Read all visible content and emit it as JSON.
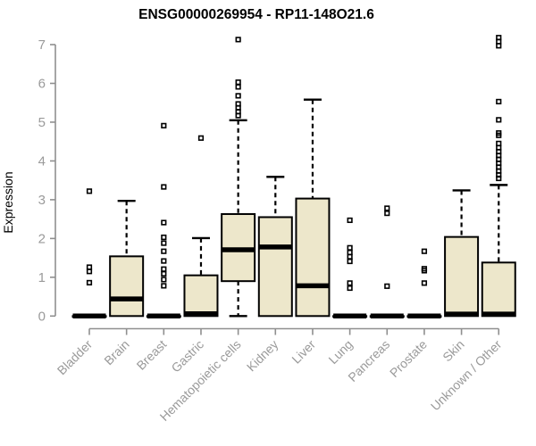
{
  "chart_data": {
    "type": "box",
    "title": "ENSG00000269954 - RP11-148O21.6",
    "ylabel": "Expression",
    "xlabel": "",
    "ylim": [
      0,
      7
    ],
    "yticks": [
      0,
      1,
      2,
      3,
      4,
      5,
      6,
      7
    ],
    "grid": false,
    "legend": "none",
    "categories": [
      "Bladder",
      "Brain",
      "Breast",
      "Gastric",
      "Hematopoietic cells",
      "Kidney",
      "Liver",
      "Lung",
      "Pancreas",
      "Prostate",
      "Skin",
      "Unknown / Other"
    ],
    "boxes": [
      {
        "category": "Bladder",
        "q1": 0,
        "median": 0,
        "q3": 0,
        "whisker_low": 0,
        "whisker_high": 0,
        "outliers": [
          3.22,
          1.26,
          1.15,
          0.86
        ]
      },
      {
        "category": "Brain",
        "q1": 0,
        "median": 0.44,
        "q3": 1.54,
        "whisker_low": 0,
        "whisker_high": 2.97,
        "outliers": []
      },
      {
        "category": "Breast",
        "q1": 0,
        "median": 0,
        "q3": 0,
        "whisker_low": 0,
        "whisker_high": 0,
        "outliers": [
          4.91,
          3.33,
          2.41,
          2.03,
          1.88,
          1.67,
          1.42,
          1.21,
          1.09,
          0.94,
          0.78
        ]
      },
      {
        "category": "Gastric",
        "q1": 0,
        "median": 0.06,
        "q3": 1.05,
        "whisker_low": 0,
        "whisker_high": 2.01,
        "outliers": [
          4.59
        ]
      },
      {
        "category": "Hematopoietic cells",
        "q1": 0.9,
        "median": 1.71,
        "q3": 2.63,
        "whisker_low": 0,
        "whisker_high": 5.05,
        "outliers": [
          7.13,
          6.03,
          5.91,
          5.68,
          5.47,
          5.37,
          5.27,
          5.17
        ]
      },
      {
        "category": "Kidney",
        "q1": 0,
        "median": 1.78,
        "q3": 2.55,
        "whisker_low": 0,
        "whisker_high": 3.59,
        "outliers": []
      },
      {
        "category": "Liver",
        "q1": 0,
        "median": 0.78,
        "q3": 3.03,
        "whisker_low": 0,
        "whisker_high": 5.58,
        "outliers": []
      },
      {
        "category": "Lung",
        "q1": 0,
        "median": 0,
        "q3": 0,
        "whisker_low": 0,
        "whisker_high": 0,
        "outliers": [
          2.47,
          1.76,
          1.64,
          1.53,
          1.41,
          0.85,
          0.72
        ]
      },
      {
        "category": "Pancreas",
        "q1": 0,
        "median": 0,
        "q3": 0,
        "whisker_low": 0,
        "whisker_high": 0,
        "outliers": [
          2.78,
          2.65,
          0.77
        ]
      },
      {
        "category": "Prostate",
        "q1": 0,
        "median": 0,
        "q3": 0,
        "whisker_low": 0,
        "whisker_high": 0,
        "outliers": [
          1.67,
          1.22,
          1.17,
          0.85
        ]
      },
      {
        "category": "Skin",
        "q1": 0,
        "median": 0.05,
        "q3": 2.04,
        "whisker_low": 0,
        "whisker_high": 3.24,
        "outliers": []
      },
      {
        "category": "Unknown / Other",
        "q1": 0,
        "median": 0.05,
        "q3": 1.38,
        "whisker_low": 0,
        "whisker_high": 3.38,
        "outliers": [
          7.18,
          7.08,
          6.97,
          5.53,
          5.06,
          4.72,
          4.66,
          4.45,
          4.34,
          4.24,
          4.14,
          4.04,
          3.94,
          3.84,
          3.74,
          3.64,
          3.55
        ]
      }
    ],
    "colors": {
      "box_fill": "#EDE7CB",
      "box_stroke": "#000000",
      "median": "#000000",
      "whisker": "#000000",
      "outlier_stroke": "#000000",
      "axis": "#8f8f8f",
      "tick_label": "#9a9a9a",
      "title": "#000000",
      "background": "#ffffff"
    }
  }
}
